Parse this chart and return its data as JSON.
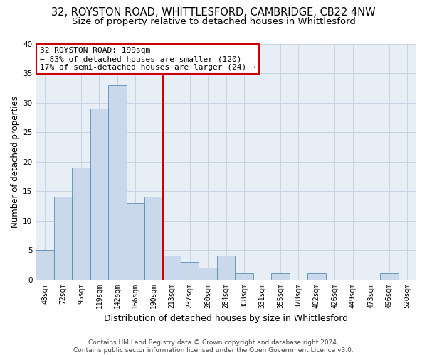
{
  "title_line1": "32, ROYSTON ROAD, WHITTLESFORD, CAMBRIDGE, CB22 4NW",
  "title_line2": "Size of property relative to detached houses in Whittlesford",
  "xlabel": "Distribution of detached houses by size in Whittlesford",
  "ylabel": "Number of detached properties",
  "bin_labels": [
    "48sqm",
    "72sqm",
    "95sqm",
    "119sqm",
    "142sqm",
    "166sqm",
    "190sqm",
    "213sqm",
    "237sqm",
    "260sqm",
    "284sqm",
    "308sqm",
    "331sqm",
    "355sqm",
    "378sqm",
    "402sqm",
    "426sqm",
    "449sqm",
    "473sqm",
    "496sqm",
    "520sqm"
  ],
  "bar_heights": [
    5,
    14,
    19,
    29,
    33,
    13,
    14,
    4,
    3,
    2,
    4,
    1,
    0,
    1,
    0,
    1,
    0,
    0,
    0,
    1,
    0
  ],
  "bar_color": "#c9d9eb",
  "bar_edge_color": "#5a8db5",
  "vline_x_index": 6.5,
  "vline_color": "#cc0000",
  "annotation_line1": "32 ROYSTON ROAD: 199sqm",
  "annotation_line2": "← 83% of detached houses are smaller (120)",
  "annotation_line3": "17% of semi-detached houses are larger (24) →",
  "annotation_box_color": "#ffffff",
  "annotation_box_edge_color": "#cc0000",
  "ylim": [
    0,
    40
  ],
  "yticks": [
    0,
    5,
    10,
    15,
    20,
    25,
    30,
    35,
    40
  ],
  "grid_color": "#c8d4e3",
  "background_color": "#e8eef5",
  "footer_text": "Contains HM Land Registry data © Crown copyright and database right 2024.\nContains public sector information licensed under the Open Government Licence v3.0.",
  "title_fontsize": 10.5,
  "subtitle_fontsize": 9.5,
  "axis_label_fontsize": 8.5,
  "tick_fontsize": 7,
  "annotation_fontsize": 8,
  "footer_fontsize": 6.5
}
